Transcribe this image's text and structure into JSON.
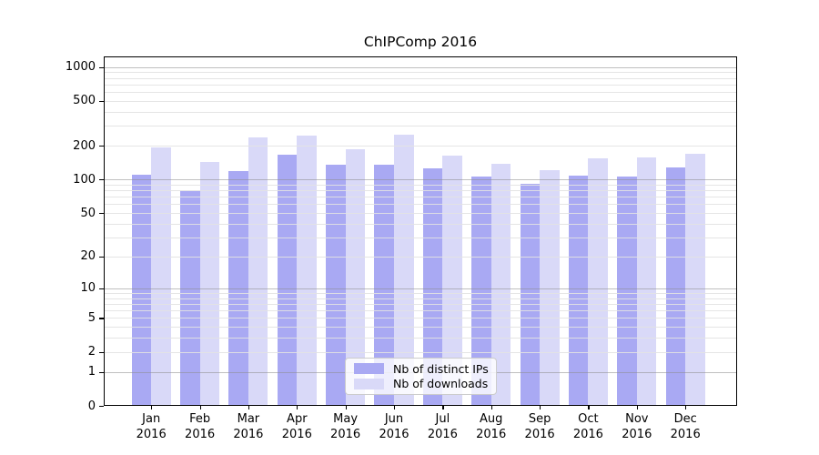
{
  "chart_data": {
    "type": "bar",
    "title": "ChIPComp 2016",
    "categories": [
      "Jan 2016",
      "Feb 2016",
      "Mar 2016",
      "Apr 2016",
      "May 2016",
      "Jun 2016",
      "Jul 2016",
      "Aug 2016",
      "Sep 2016",
      "Oct 2016",
      "Nov 2016",
      "Dec 2016"
    ],
    "series": [
      {
        "name": "Nb of distinct IPs",
        "color": "#a9a9f3",
        "values": [
          111,
          78,
          119,
          166,
          135,
          136,
          126,
          107,
          91,
          108,
          106,
          127
        ]
      },
      {
        "name": "Nb of downloads",
        "color": "#d9d9f8",
        "values": [
          194,
          143,
          237,
          246,
          185,
          249,
          164,
          138,
          122,
          153,
          156,
          169
        ]
      }
    ],
    "xlabel": "",
    "ylabel": "",
    "yscale": "log1p",
    "ylim": [
      0,
      1238
    ],
    "yticks": [
      0,
      1,
      2,
      5,
      10,
      20,
      50,
      100,
      200,
      500,
      1000
    ],
    "grid": "major-and-minor",
    "legend_position": "bottom-center"
  },
  "colors": {
    "background": "#ffffff",
    "frame": "#000000",
    "major_grid": "#8c8c8c",
    "minor_grid": "#e2e2e2",
    "legend_border": "#cccccc"
  }
}
